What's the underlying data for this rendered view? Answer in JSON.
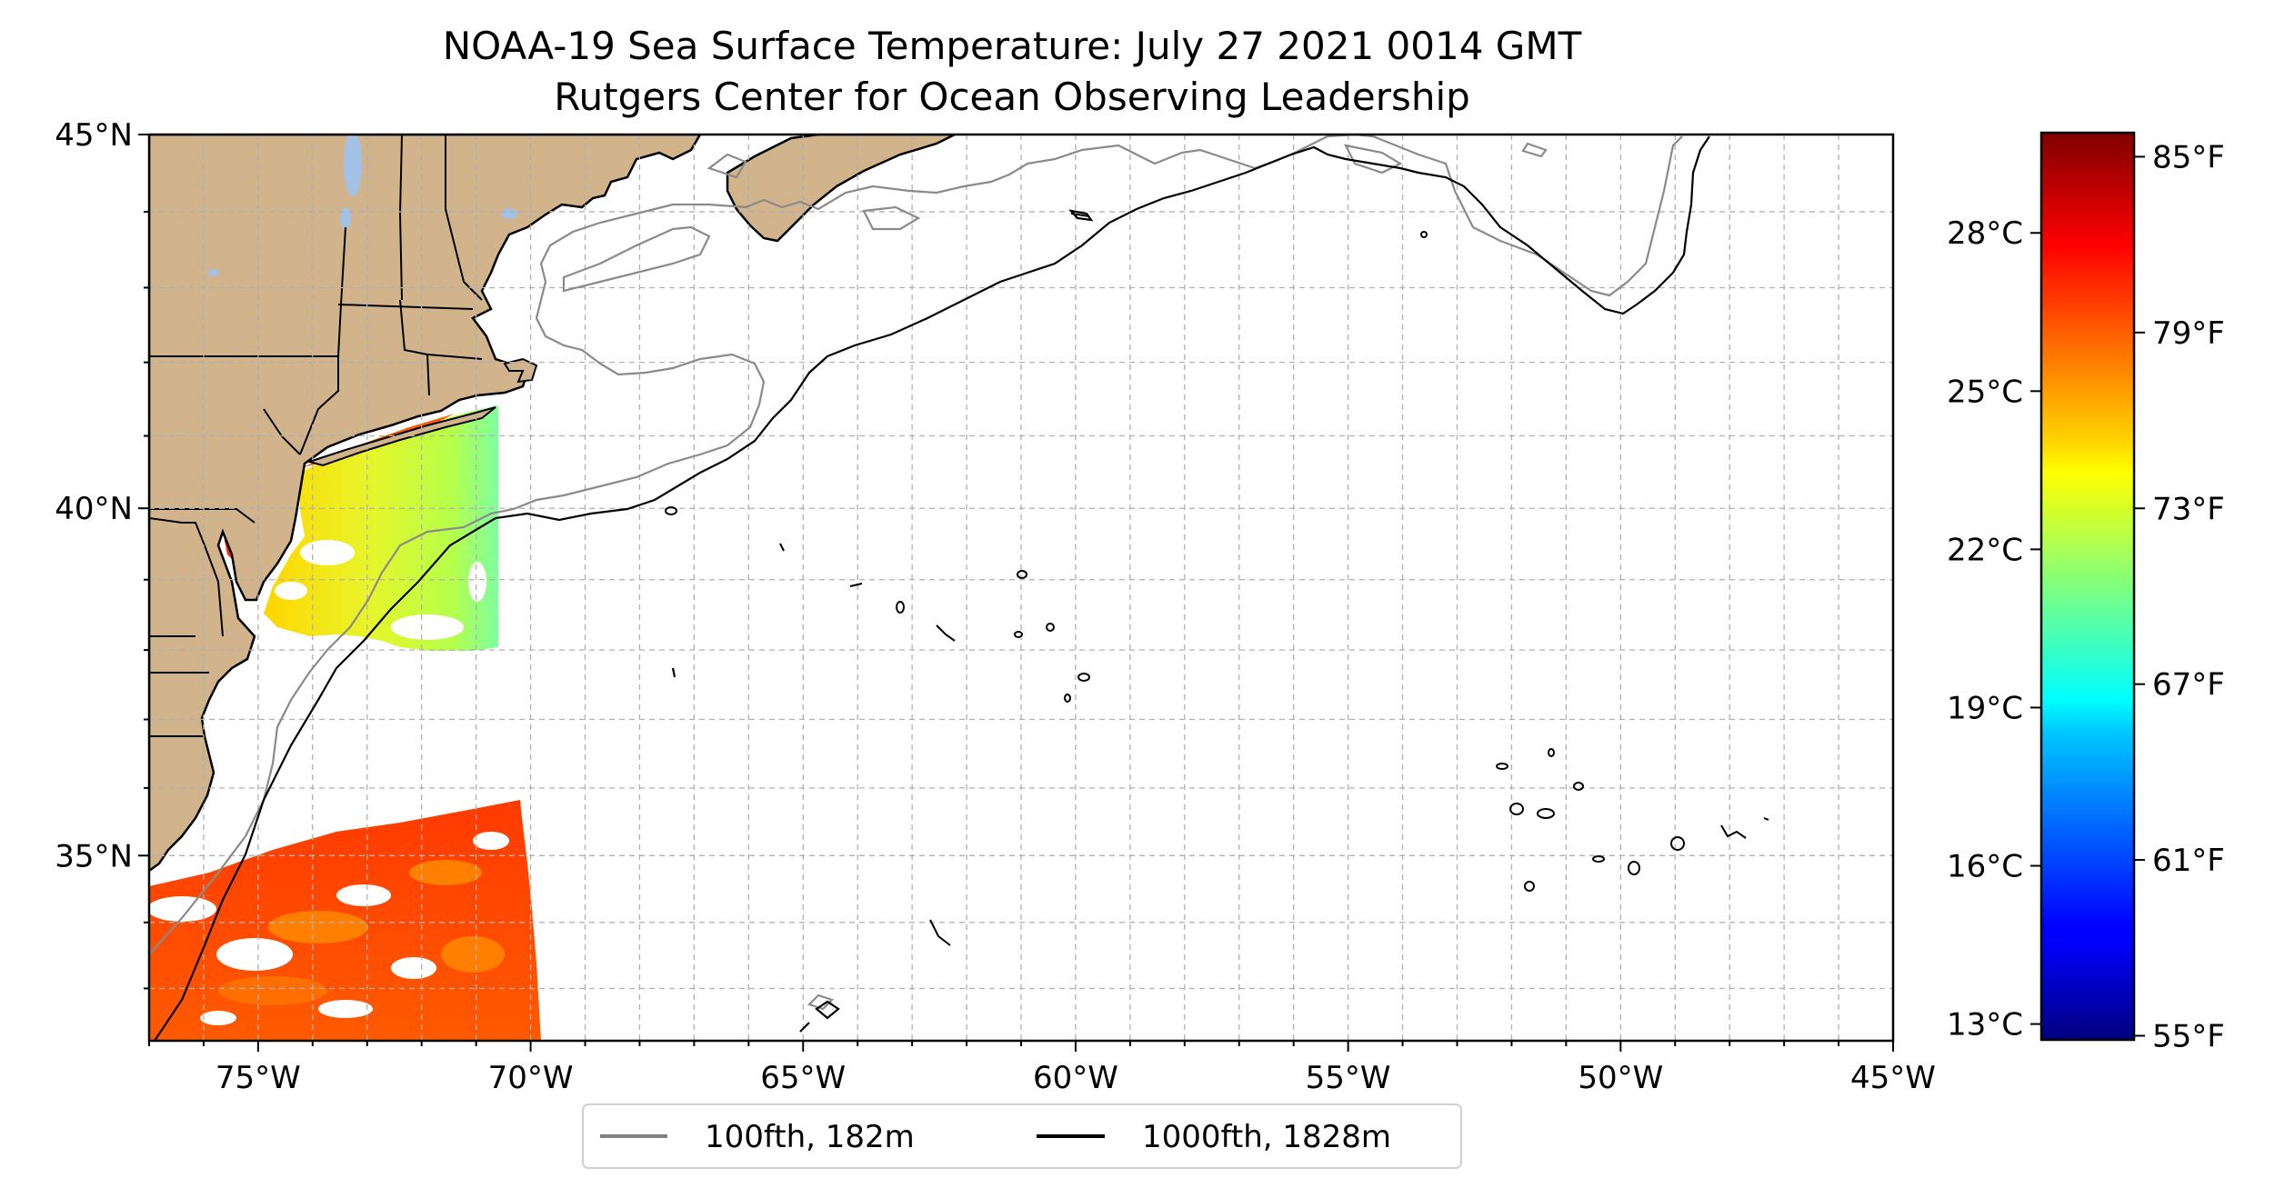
{
  "title": {
    "line1": "NOAA-19 Sea Surface Temperature: July 27 2021 0014 GMT",
    "line2": "Rutgers Center for Ocean Observing Leadership"
  },
  "map": {
    "extent": {
      "lon_min": -77,
      "lon_max": -45,
      "lat_min": 32.2,
      "lat_max": 45
    },
    "lat_ticks": [
      {
        "value": 45,
        "label": "45°N"
      },
      {
        "value": 40,
        "label": "40°N"
      },
      {
        "value": 35,
        "label": "35°N"
      }
    ],
    "lon_ticks": [
      {
        "value": -75,
        "label": "75°W"
      },
      {
        "value": -70,
        "label": "70°W"
      },
      {
        "value": -65,
        "label": "65°W"
      },
      {
        "value": -60,
        "label": "60°W"
      },
      {
        "value": -55,
        "label": "55°W"
      },
      {
        "value": -50,
        "label": "50°W"
      },
      {
        "value": -45,
        "label": "45°W"
      }
    ],
    "gridlines": true,
    "land_color": "#d2b48c",
    "lake_color": "#a3c1e6",
    "legend": [
      {
        "label": "100fth, 182m",
        "color": "#808080"
      },
      {
        "label": "1000fth, 1828m",
        "color": "#000000"
      }
    ]
  },
  "colorbar": {
    "colormap": "jet",
    "range_c": [
      12.7,
      29.9
    ],
    "celsius_ticks": [
      {
        "value": 13,
        "label": "13°C"
      },
      {
        "value": 16,
        "label": "16°C"
      },
      {
        "value": 19,
        "label": "19°C"
      },
      {
        "value": 22,
        "label": "22°C"
      },
      {
        "value": 25,
        "label": "25°C"
      },
      {
        "value": 28,
        "label": "28°C"
      }
    ],
    "fahrenheit_ticks": [
      {
        "value": 55,
        "label": "55°F"
      },
      {
        "value": 61,
        "label": "61°F"
      },
      {
        "value": 67,
        "label": "67°F"
      },
      {
        "value": 73,
        "label": "73°F"
      },
      {
        "value": 79,
        "label": "79°F"
      },
      {
        "value": 85,
        "label": "85°F"
      }
    ]
  }
}
